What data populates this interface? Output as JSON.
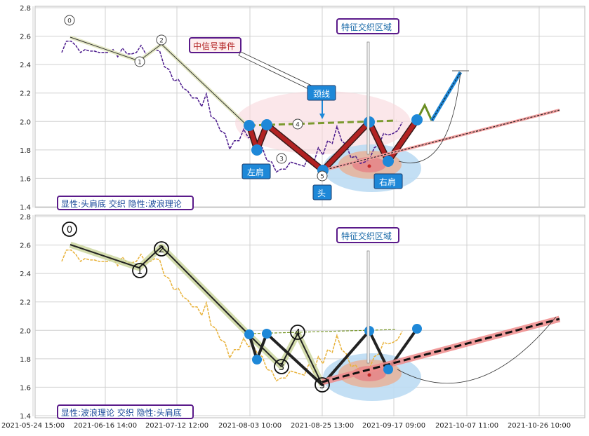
{
  "chart_data": [
    {
      "type": "line",
      "panel": "top",
      "ylim": [
        1.4,
        2.8
      ],
      "yticks": [
        "2.8",
        "2.6",
        "2.4",
        "2.2",
        "2.0",
        "1.8",
        "1.6",
        "1.4"
      ],
      "panel_label": "显性:头肩底 交织 隐性:波浪理论",
      "series": [
        {
          "values_x": [
            0.0,
            0.6,
            1.2,
            1.8,
            2.4,
            3.0,
            3.6,
            4.2,
            4.8,
            5.4,
            6.0,
            6.6,
            7.2,
            7.8,
            8.4,
            9.0,
            9.6,
            10.2,
            10.8,
            11.4,
            12.0,
            12.6,
            13.2,
            13.8,
            14.4,
            15.0,
            15.6,
            16.2,
            16.8,
            17.4,
            18.0,
            18.6,
            19.2,
            19.8,
            20.4,
            21.0,
            21.6,
            22.2,
            22.8,
            23.4,
            24.0,
            24.6,
            25.2,
            25.8,
            26.4,
            27.0,
            27.6,
            28.2,
            28.8,
            29.4,
            30.0,
            30.6,
            31.2,
            31.8,
            32.4,
            33.0,
            33.6,
            34.2,
            34.8,
            35.4,
            36.0,
            36.6,
            37.2,
            37.8,
            38.4,
            39.0,
            39.6,
            40.2,
            40.8,
            41.4,
            42.0,
            42.6,
            43.2,
            43.8
          ],
          "values_y": [
            2.5,
            2.55,
            2.58,
            2.52,
            2.5,
            2.49,
            2.51,
            2.48,
            2.5,
            2.47,
            2.5,
            2.49,
            2.47,
            2.5,
            2.49,
            2.46,
            2.5,
            2.52,
            2.49,
            2.47,
            2.52,
            2.48,
            2.4,
            2.35,
            2.3,
            2.28,
            2.25,
            2.2,
            2.18,
            2.15,
            2.12,
            2.18,
            2.05,
            2.0,
            1.95,
            1.9,
            1.82,
            1.85,
            1.88,
            1.93,
            1.9,
            1.88,
            1.85,
            1.8,
            1.74,
            1.7,
            1.66,
            1.65,
            1.68,
            1.7,
            1.72,
            1.68,
            1.7,
            1.75,
            1.72,
            1.8,
            1.78,
            1.85,
            1.86,
            1.95,
            1.88,
            1.82,
            1.76,
            1.74,
            1.72,
            1.7,
            1.75,
            1.8,
            1.85,
            1.9,
            1.92,
            1.9,
            1.95,
            1.98
          ]
        }
      ],
      "wave_points": {
        "labels": [
          "0",
          "1",
          "2",
          "3",
          "4",
          "5"
        ]
      },
      "pattern_labels": {
        "left_shoulder": "左肩",
        "head": "头",
        "right_shoulder": "右肩",
        "neckline": "颈线"
      },
      "annotations": {
        "event": "中信号事件",
        "zone": "特征交织区域"
      }
    },
    {
      "type": "line",
      "panel": "bottom",
      "ylim": [
        1.4,
        2.8
      ],
      "yticks": [
        "2.8",
        "2.6",
        "2.4",
        "2.2",
        "2.0",
        "1.8",
        "1.6",
        "1.4"
      ],
      "panel_label": "显性:波浪理论 交织 隐性:头肩底",
      "wave_points": {
        "labels": [
          "0",
          "1",
          "2",
          "3",
          "4",
          "5"
        ]
      },
      "annotations": {
        "zone": "特征交织区域"
      }
    }
  ],
  "x_ticks": [
    "2021-05-24 15:00",
    "2021-06-16 14:00",
    "2021-07-12 12:00",
    "2021-08-03 10:00",
    "2021-08-25 13:00",
    "2021-09-17 09:00",
    "2021-10-07 11:00",
    "2021-10-26 10:00"
  ],
  "colors": {
    "price_top": "#4b1a8c",
    "price_bottom": "#e8b23a",
    "wave_green": "#6b8e23",
    "head_shoulders": "#b22222",
    "marker_blue": "#1e88d8",
    "trend_red": "#f08080",
    "neckline": "#7b9a2f"
  }
}
